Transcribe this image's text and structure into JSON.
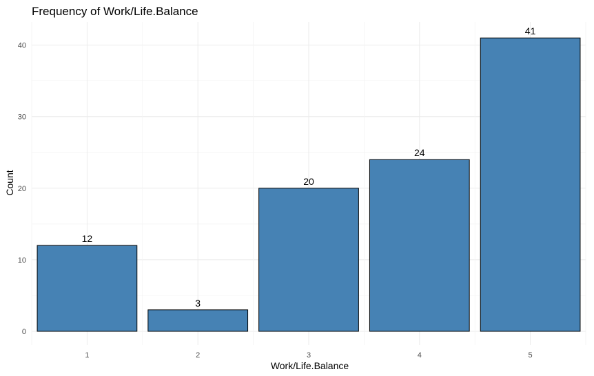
{
  "chart_data": {
    "type": "bar",
    "title": "Frequency of Work/Life.Balance",
    "xlabel": "Work/Life.Balance",
    "ylabel": "Count",
    "categories": [
      "1",
      "2",
      "3",
      "4",
      "5"
    ],
    "values": [
      12,
      3,
      20,
      24,
      41
    ],
    "data_labels": [
      "12",
      "3",
      "20",
      "24",
      "41"
    ],
    "y_ticks": [
      "0",
      "10",
      "20",
      "30",
      "40"
    ],
    "ylim": [
      0,
      43.05
    ],
    "grid": true,
    "legend": "none",
    "colors": {
      "bar_fill": "#4682B4",
      "bar_stroke": "#000000"
    }
  }
}
